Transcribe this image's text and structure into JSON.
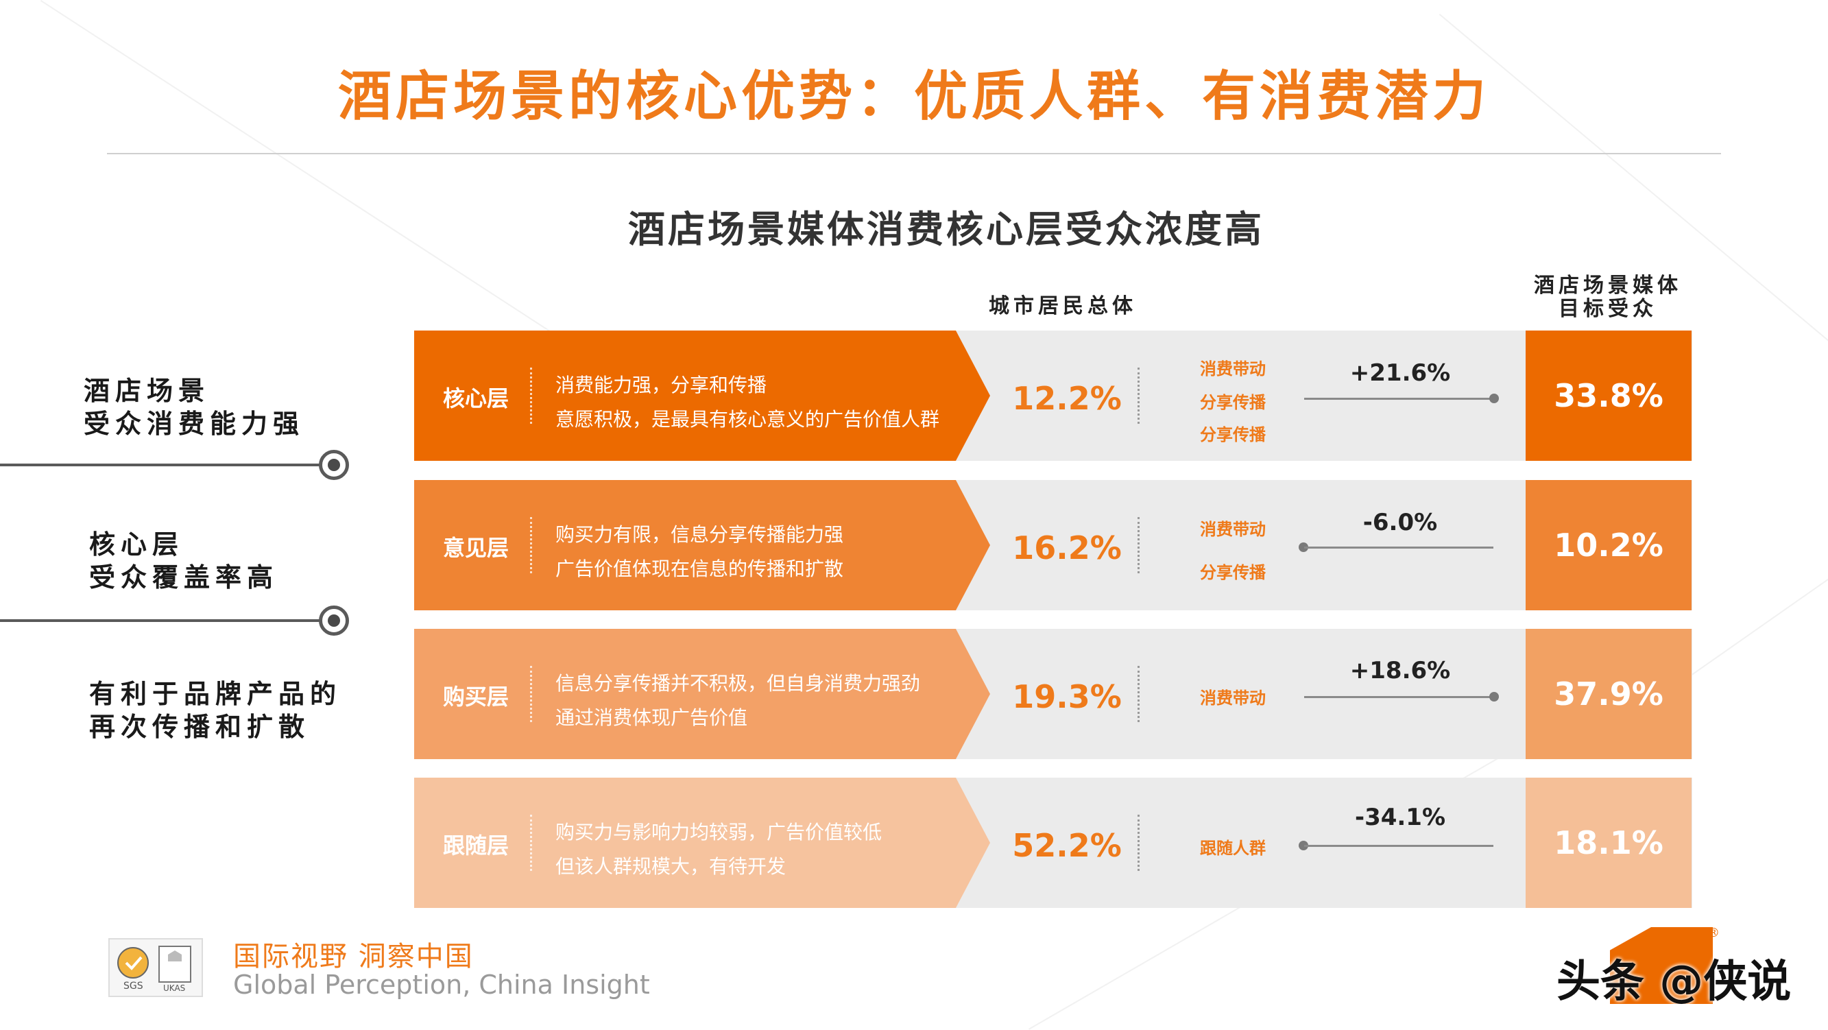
{
  "title": "酒店场景的核心优势：优质人群、有消费潜力",
  "subtitle": "酒店场景媒体消费核心层受众浓度高",
  "column_headers": {
    "population": "城市居民总体",
    "target": "酒店场景媒体\n目标受众"
  },
  "left_labels": [
    "酒店场景\n受众消费能力强",
    "核心层\n受众覆盖率高",
    "有利于品牌产品的\n再次传播和扩散"
  ],
  "layers": [
    {
      "name": "核心层",
      "desc": [
        "消费能力强，分享和传播",
        "意愿积极，是最具有核心意义的广告价值人群"
      ],
      "population_pct": "12.2%",
      "tags": [
        "消费带动",
        "分享传播",
        "分享传播"
      ],
      "diff": "+21.6%",
      "target_pct": "33.8%",
      "color": "#ec6a00",
      "target_color": "#ec6a00"
    },
    {
      "name": "意见层",
      "desc": [
        "购买力有限，信息分享传播能力强",
        "广告价值体现在信息的传播和扩散"
      ],
      "population_pct": "16.2%",
      "tags": [
        "消费带动",
        "分享传播"
      ],
      "diff": "-6.0%",
      "target_pct": "10.2%",
      "color": "#ef8433",
      "target_color": "#ef8433"
    },
    {
      "name": "购买层",
      "desc": [
        "信息分享传播并不积极，但自身消费力强劲",
        "通过消费体现广告价值"
      ],
      "population_pct": "19.3%",
      "tags": [
        "消费带动"
      ],
      "diff": "+18.6%",
      "target_pct": "37.9%",
      "color": "#f3a167",
      "target_color": "#f2a163"
    },
    {
      "name": "跟随层",
      "desc": [
        "购买力与影响力均较弱，广告价值较低",
        "但该人群规模大，有待开发"
      ],
      "population_pct": "52.2%",
      "tags": [
        "跟随人群"
      ],
      "diff": "-34.1%",
      "target_pct": "18.1%",
      "color": "#f6c39e",
      "target_color": "#f5bf97"
    }
  ],
  "footer": {
    "slogan_cn": "国际视野 洞察中国",
    "slogan_en": "Global Perception,  China Insight",
    "cert_sgs": "SGS",
    "cert_ukas": "UKAS"
  },
  "watermark": "头条 @侠说",
  "colors": {
    "accent": "#ef7a1a",
    "band_bg": "#ebebeb"
  }
}
